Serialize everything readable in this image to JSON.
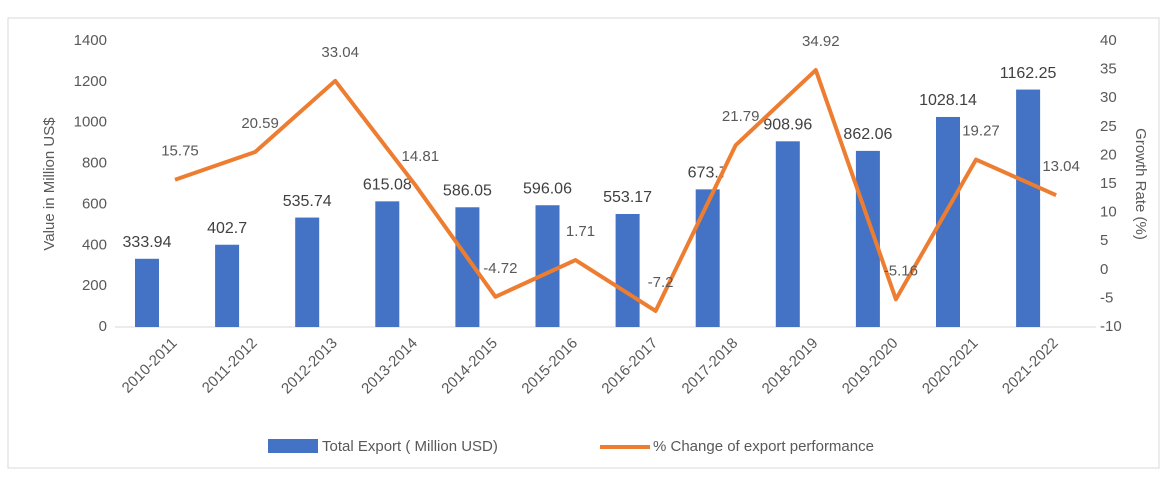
{
  "chart_data": {
    "type": "bar-line",
    "categories": [
      "2010-2011",
      "2011-2012",
      "2012-2013",
      "2013-2014",
      "2014-2015",
      "2015-2016",
      "2016-2017",
      "2017-2018",
      "2018-2019",
      "2019-2020",
      "2020-2021",
      "2021-2022"
    ],
    "series": [
      {
        "name": "Total Export ( Million USD)",
        "type": "bar",
        "color": "#4472c4",
        "values": [
          333.94,
          402.7,
          535.74,
          615.08,
          586.05,
          596.06,
          553.17,
          673.7,
          908.96,
          862.06,
          1028.14,
          1162.25
        ]
      },
      {
        "name": "% Change of export performance",
        "type": "line",
        "axis": "y2",
        "color": "#ed7d31",
        "values": [
          15.75,
          20.59,
          33.04,
          14.81,
          -4.72,
          1.71,
          -7.2,
          21.79,
          34.92,
          -5.16,
          19.27,
          13.04
        ]
      }
    ],
    "ylabel": "Value in Million US$",
    "y2label": "Growth Rate (%)",
    "ylim": [
      0,
      1400
    ],
    "yticks": [
      0,
      200,
      400,
      600,
      800,
      1000,
      1200,
      1400
    ],
    "y2lim": [
      -10,
      40
    ],
    "y2ticks": [
      -10,
      -5,
      0,
      5,
      10,
      15,
      20,
      25,
      30,
      35,
      40
    ],
    "legend": "bottom"
  }
}
